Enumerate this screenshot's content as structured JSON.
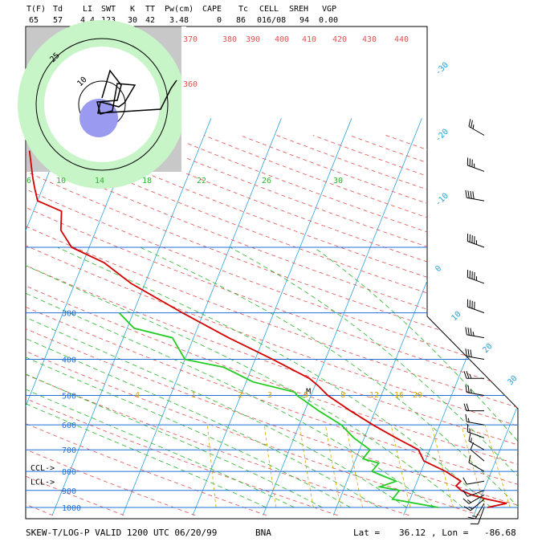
{
  "header": {
    "labels": [
      "T(F)",
      "Td",
      "LI",
      "SWT",
      "K",
      "TT",
      "Pw(cm)",
      "CAPE",
      "Tc",
      "CELL",
      "SREH",
      "VGP"
    ],
    "values": [
      "65",
      "57",
      "4.4",
      "123",
      "30",
      "42",
      "3.48",
      "0",
      "86",
      "016/08",
      "94",
      "0.00"
    ]
  },
  "footer": {
    "title": "SKEW-T/LOG-P VALID 1200 UTC 06/20/99",
    "station": "BNA",
    "lat_label": "Lat =",
    "lat": "36.12",
    "lon_label": ", Lon =",
    "lon": "-86.68"
  },
  "colors": {
    "temperature": "#d40000",
    "dewpoint": "#22cc22",
    "isobar": "#1f6fd6",
    "isotherm": "#2aa4d8",
    "dry_adiabat": "#e05050",
    "mixing_ratio_green": "#2bb52b",
    "mixing_ratio_yellow": "#d8a800",
    "hodograph_outer": "#c8c8c8",
    "hodograph_mid": "#c8f5c8",
    "hodograph_storm": "#9a9af0"
  },
  "chart_data": {
    "type": "skew-t",
    "pressure_levels": [
      {
        "p": 1000,
        "label": "1000"
      },
      {
        "p": 900,
        "label": "900"
      },
      {
        "p": 800,
        "label": "800"
      },
      {
        "p": 700,
        "label": "700"
      },
      {
        "p": 600,
        "label": "600"
      },
      {
        "p": 500,
        "label": "500"
      },
      {
        "p": 400,
        "label": "400"
      },
      {
        "p": 300,
        "label": "300"
      },
      {
        "p": 200,
        "label": ""
      }
    ],
    "isotherm_labels": [
      "-30",
      "-20",
      "-10",
      "0",
      "10",
      "20",
      "30"
    ],
    "theta_labels": [
      "360",
      "370",
      "380",
      "390",
      "400",
      "410",
      "420",
      "430",
      "440"
    ],
    "mixing_ratio_upper_labels": [
      "6",
      "10",
      "14",
      "18",
      "22",
      "26",
      "30"
    ],
    "mixing_ratio_lower_labels": [
      "4",
      "1",
      "2",
      "3",
      "5",
      "8",
      "12",
      "16",
      "20"
    ],
    "level_markers": [
      {
        "label": "CCL->",
        "p": 780
      },
      {
        "label": "LCL->",
        "p": 850
      }
    ],
    "temperature_profile": [
      {
        "p": 1000,
        "t": 21.5
      },
      {
        "p": 975,
        "t": 24
      },
      {
        "p": 950,
        "t": 21
      },
      {
        "p": 925,
        "t": 18.5
      },
      {
        "p": 900,
        "t": 16.8
      },
      {
        "p": 875,
        "t": 15.8
      },
      {
        "p": 850,
        "t": 16.2
      },
      {
        "p": 800,
        "t": 13.5
      },
      {
        "p": 750,
        "t": 9.8
      },
      {
        "p": 700,
        "t": 8.4
      },
      {
        "p": 650,
        "t": 4.5
      },
      {
        "p": 600,
        "t": 0.5
      },
      {
        "p": 550,
        "t": -3.5
      },
      {
        "p": 500,
        "t": -7.6
      },
      {
        "p": 470,
        "t": -9.6
      },
      {
        "p": 450,
        "t": -11.2
      },
      {
        "p": 400,
        "t": -17.5
      },
      {
        "p": 350,
        "t": -25
      },
      {
        "p": 300,
        "t": -33
      },
      {
        "p": 250,
        "t": -42
      },
      {
        "p": 220,
        "t": -47
      },
      {
        "p": 200,
        "t": -52.5
      },
      {
        "p": 180,
        "t": -55
      },
      {
        "p": 160,
        "t": -56
      },
      {
        "p": 150,
        "t": -60
      },
      {
        "p": 140,
        "t": -61
      },
      {
        "p": 130,
        "t": -62
      },
      {
        "p": 110,
        "t": -64
      }
    ],
    "dewpoint_profile": [
      {
        "p": 1000,
        "t": 14.5
      },
      {
        "p": 950,
        "t": 7.5
      },
      {
        "p": 900,
        "t": 8
      },
      {
        "p": 880,
        "t": 5
      },
      {
        "p": 850,
        "t": 7
      },
      {
        "p": 800,
        "t": 3
      },
      {
        "p": 760,
        "t": 3.5
      },
      {
        "p": 740,
        "t": 1
      },
      {
        "p": 700,
        "t": 1.5
      },
      {
        "p": 650,
        "t": -1.5
      },
      {
        "p": 600,
        "t": -4
      },
      {
        "p": 550,
        "t": -8
      },
      {
        "p": 500,
        "t": -12
      },
      {
        "p": 490,
        "t": -12.5
      },
      {
        "p": 460,
        "t": -19
      },
      {
        "p": 420,
        "t": -24
      },
      {
        "p": 400,
        "t": -30
      },
      {
        "p": 350,
        "t": -33
      },
      {
        "p": 330,
        "t": -39
      },
      {
        "p": 300,
        "t": -42
      }
    ],
    "wind_barbs": [
      {
        "p": 1000,
        "dir": 200,
        "spd": 10
      },
      {
        "p": 975,
        "dir": 210,
        "spd": 15
      },
      {
        "p": 950,
        "dir": 230,
        "spd": 15
      },
      {
        "p": 925,
        "dir": 240,
        "spd": 15
      },
      {
        "p": 900,
        "dir": 250,
        "spd": 10
      },
      {
        "p": 850,
        "dir": 260,
        "spd": 10
      },
      {
        "p": 800,
        "dir": 300,
        "spd": 10
      },
      {
        "p": 750,
        "dir": 310,
        "spd": 10
      },
      {
        "p": 700,
        "dir": 300,
        "spd": 15
      },
      {
        "p": 650,
        "dir": 290,
        "spd": 15
      },
      {
        "p": 600,
        "dir": 280,
        "spd": 15
      },
      {
        "p": 550,
        "dir": 270,
        "spd": 20
      },
      {
        "p": 500,
        "dir": 280,
        "spd": 25
      },
      {
        "p": 450,
        "dir": 270,
        "spd": 25
      },
      {
        "p": 400,
        "dir": 280,
        "spd": 30
      },
      {
        "p": 350,
        "dir": 280,
        "spd": 35
      },
      {
        "p": 300,
        "dir": 290,
        "spd": 40
      },
      {
        "p": 250,
        "dir": 290,
        "spd": 45
      },
      {
        "p": 200,
        "dir": 290,
        "spd": 45
      },
      {
        "p": 150,
        "dir": 280,
        "spd": 40
      },
      {
        "p": 125,
        "dir": 290,
        "spd": 35
      },
      {
        "p": 100,
        "dir": 300,
        "spd": 25
      }
    ],
    "hodograph": {
      "ring_labels": [
        "10",
        "25"
      ],
      "storm_motion_label": "016/08",
      "marker_label": "M"
    }
  }
}
